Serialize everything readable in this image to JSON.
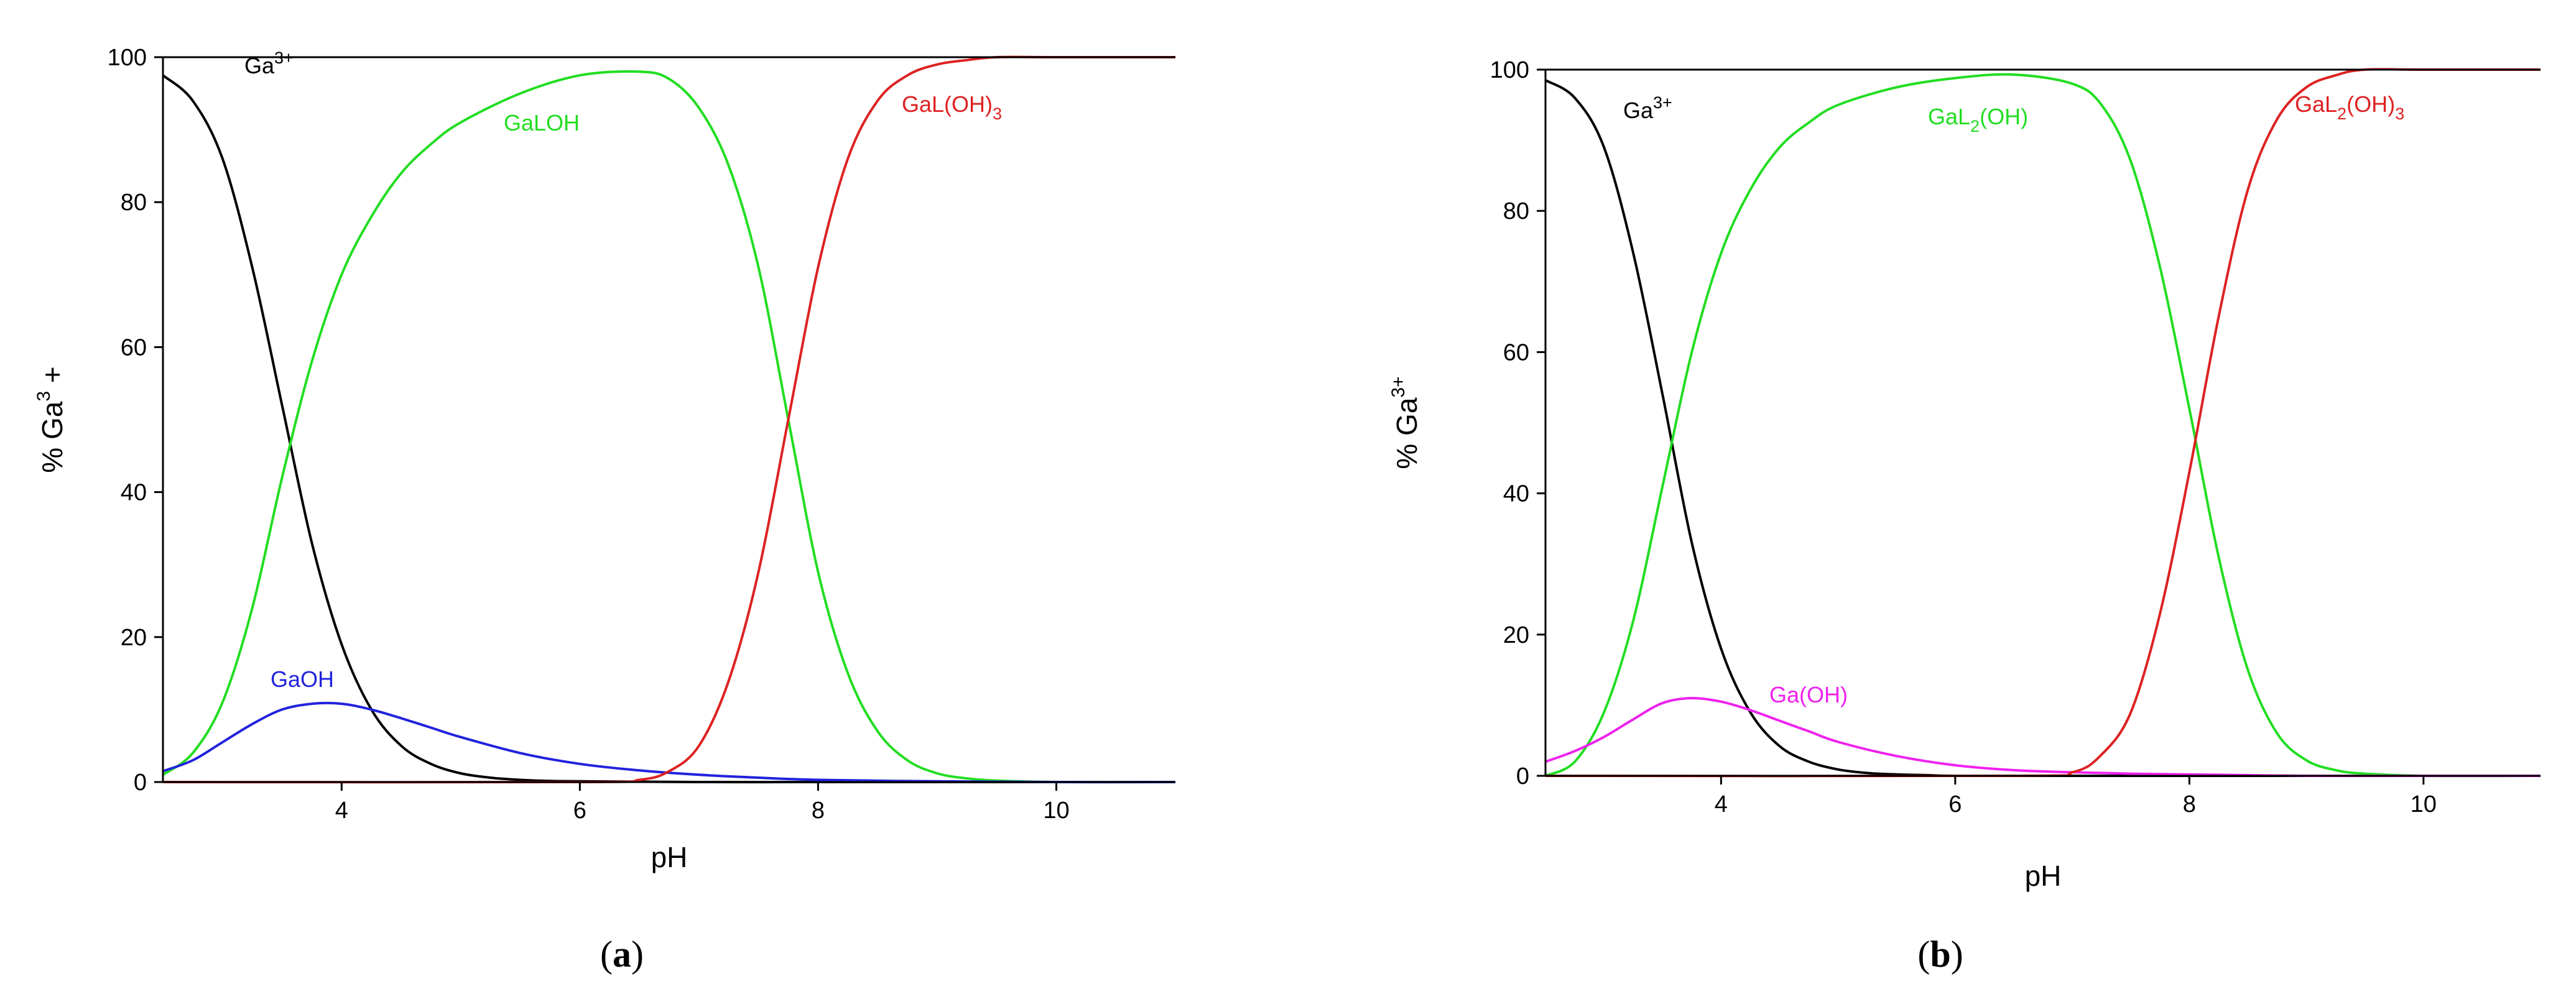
{
  "chart_data": [
    {
      "type": "line",
      "panel_label_open": "(",
      "panel_label_letter": "a",
      "panel_label_close": ")",
      "xlabel": "pH",
      "ylabel_main": "% Ga",
      "ylabel_sup": "3",
      "ylabel_tail": " +",
      "xlim": [
        2.5,
        11
      ],
      "ylim": [
        0,
        100
      ],
      "xticks": [
        4,
        6,
        8,
        10
      ],
      "yticks": [
        0,
        20,
        40,
        60,
        80,
        100
      ],
      "series": [
        {
          "label_main": "Ga",
          "label_sub": "",
          "label_sup": "3+",
          "label_tail": "",
          "color": "#000000",
          "x": [
            2.5,
            2.75,
            3.0,
            3.25,
            3.5,
            3.75,
            4.0,
            4.25,
            4.5,
            4.75,
            5.0,
            5.25,
            5.5,
            5.75,
            6.0,
            7.0,
            8.0,
            9.0,
            10.0,
            11.0
          ],
          "y": [
            97.5,
            94,
            86,
            71,
            52,
            33,
            19,
            10,
            5,
            2.5,
            1.2,
            0.6,
            0.3,
            0.15,
            0.1,
            0,
            0,
            0,
            0,
            0
          ]
        },
        {
          "label_main": "GaLOH",
          "label_sub": "",
          "label_sup": "",
          "label_tail": "",
          "color": "#22dd22",
          "x": [
            2.5,
            2.75,
            3.0,
            3.25,
            3.5,
            3.75,
            4.0,
            4.25,
            4.5,
            4.75,
            5.0,
            5.5,
            6.0,
            6.5,
            6.75,
            7.0,
            7.25,
            7.5,
            7.75,
            8.0,
            8.25,
            8.5,
            8.75,
            9.0,
            9.25,
            9.5,
            10.0,
            11.0
          ],
          "y": [
            1,
            4,
            11,
            24,
            42,
            58,
            70,
            78,
            84,
            88,
            91,
            95,
            97.5,
            98,
            97,
            93,
            85,
            71,
            50,
            29,
            15,
            7,
            3,
            1.2,
            0.5,
            0.2,
            0,
            0
          ]
        },
        {
          "label_main": "GaOH",
          "label_sub": "",
          "label_sup": "",
          "label_tail": "",
          "color": "#2222dd",
          "x": [
            2.5,
            2.75,
            3.0,
            3.25,
            3.5,
            3.75,
            4.0,
            4.25,
            4.5,
            4.75,
            5.0,
            5.5,
            6.0,
            6.5,
            7.0,
            7.5,
            8.0,
            9.0,
            10.0,
            11.0
          ],
          "y": [
            1.5,
            3,
            5.5,
            8,
            10,
            10.8,
            10.8,
            10,
            8.8,
            7.5,
            6.2,
            4,
            2.5,
            1.6,
            1,
            0.6,
            0.3,
            0.1,
            0,
            0
          ]
        },
        {
          "label_main": "GaL(OH)",
          "label_sub": "3",
          "label_sup": "",
          "label_tail": "",
          "color": "#dd2222",
          "x": [
            2.5,
            6.0,
            6.5,
            6.75,
            7.0,
            7.25,
            7.5,
            7.75,
            8.0,
            8.25,
            8.5,
            8.75,
            9.0,
            9.25,
            9.5,
            10.0,
            11.0
          ],
          "y": [
            0,
            0,
            0.3,
            1.5,
            5,
            14,
            29,
            50,
            71,
            86,
            94,
            97.5,
            99,
            99.6,
            100,
            100,
            100
          ]
        }
      ]
    },
    {
      "type": "line",
      "panel_label_open": "(",
      "panel_label_letter": "b",
      "panel_label_close": ")",
      "xlabel": "pH",
      "ylabel_main": "% Ga",
      "ylabel_sup": "3+",
      "ylabel_tail": "",
      "xlim": [
        2.5,
        11
      ],
      "ylim": [
        0,
        100
      ],
      "xticks": [
        4,
        6,
        8,
        10
      ],
      "yticks": [
        0,
        20,
        40,
        60,
        80,
        100
      ],
      "series": [
        {
          "label_main": "Ga",
          "label_sub": "",
          "label_sup": "3+",
          "label_tail": "",
          "color": "#000000",
          "x": [
            2.5,
            2.75,
            3.0,
            3.25,
            3.5,
            3.75,
            4.0,
            4.25,
            4.5,
            4.75,
            5.0,
            5.25,
            5.5,
            5.75,
            6.0,
            7.0,
            8.0,
            9.0,
            10.0,
            11.0
          ],
          "y": [
            98.5,
            96,
            89,
            74,
            54,
            33,
            18,
            9,
            4.2,
            2,
            0.9,
            0.4,
            0.2,
            0.1,
            0,
            0,
            0,
            0,
            0,
            0
          ]
        },
        {
          "label_main": "GaL",
          "label_sub": "2",
          "label_sup": "",
          "label_tail": "(OH)",
          "color": "#22dd22",
          "x": [
            2.5,
            2.75,
            3.0,
            3.25,
            3.5,
            3.75,
            4.0,
            4.25,
            4.5,
            4.75,
            5.0,
            5.5,
            6.0,
            6.5,
            7.0,
            7.25,
            7.5,
            7.75,
            8.0,
            8.25,
            8.5,
            8.75,
            9.0,
            9.25,
            9.5,
            10.0,
            11.0
          ],
          "y": [
            0,
            2,
            9,
            22,
            41,
            60,
            74,
            83,
            89,
            92.5,
            95,
            97.5,
            98.8,
            99.3,
            98,
            95,
            87,
            72,
            52,
            31,
            15,
            6,
            2.2,
            0.8,
            0.3,
            0,
            0
          ]
        },
        {
          "label_main": "Ga(OH)",
          "label_sub": "",
          "label_sup": "",
          "label_tail": "",
          "color": "#ee22ee",
          "x": [
            2.5,
            2.75,
            3.0,
            3.25,
            3.5,
            3.75,
            4.0,
            4.25,
            4.5,
            4.75,
            5.0,
            5.5,
            6.0,
            6.5,
            7.0,
            7.5,
            8.0,
            9.0,
            10.0,
            11.0
          ],
          "y": [
            2,
            3.5,
            5.5,
            8,
            10.3,
            11,
            10.5,
            9.3,
            7.8,
            6.3,
            4.8,
            2.8,
            1.5,
            0.8,
            0.5,
            0.3,
            0.2,
            0,
            0,
            0
          ]
        },
        {
          "label_main": "GaL",
          "label_sub": "2",
          "label_sup": "",
          "label_tail": "(OH)",
          "label_sub2": "3",
          "color": "#dd2222",
          "x": [
            2.5,
            6.5,
            7.0,
            7.25,
            7.5,
            7.75,
            8.0,
            8.25,
            8.5,
            8.75,
            9.0,
            9.25,
            9.5,
            10.0,
            11.0
          ],
          "y": [
            0,
            0,
            0.5,
            3,
            9,
            23,
            43,
            65,
            83,
            93,
            97.5,
            99.2,
            100,
            100,
            100
          ]
        }
      ]
    }
  ]
}
